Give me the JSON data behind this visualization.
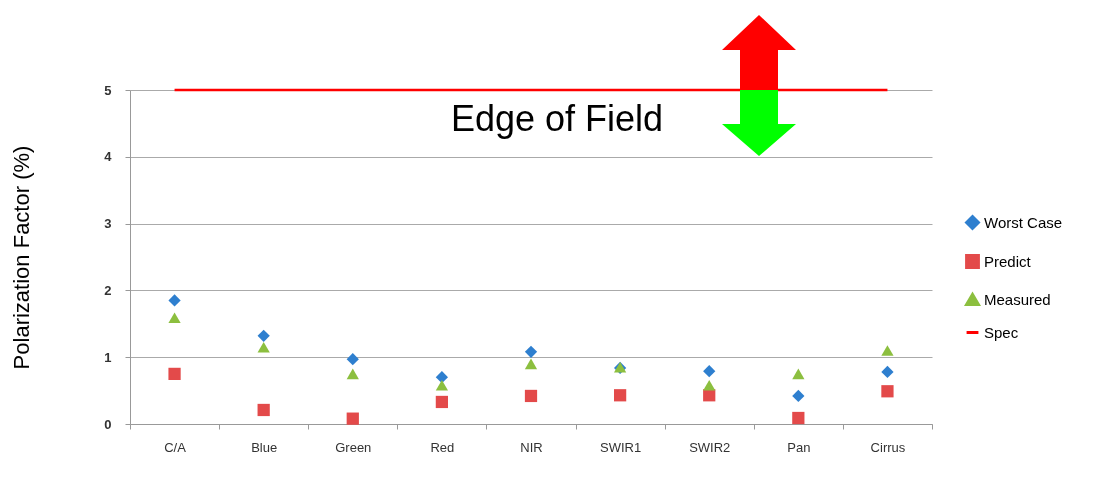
{
  "chart_data": {
    "type": "scatter",
    "ylabel": "Polarization Factor (%)",
    "categories": [
      "C/A",
      "Blue",
      "Green",
      "Red",
      "NIR",
      "SWIR1",
      "SWIR2",
      "Pan",
      "Cirrus"
    ],
    "series": [
      {
        "name": "Worst Case",
        "marker": "diamond",
        "color": "#2e7fcf",
        "values": [
          1.85,
          1.32,
          0.97,
          0.7,
          1.08,
          0.84,
          0.79,
          0.42,
          0.78
        ]
      },
      {
        "name": "Predict",
        "marker": "square",
        "color": "#e34a4a",
        "values": [
          0.75,
          0.21,
          0.08,
          0.33,
          0.42,
          0.43,
          0.43,
          0.09,
          0.49
        ]
      },
      {
        "name": "Measured",
        "marker": "triangle",
        "color": "#8cbf3f",
        "values": [
          1.59,
          1.15,
          0.75,
          0.58,
          0.9,
          0.85,
          0.58,
          0.75,
          1.1
        ]
      },
      {
        "name": "Spec",
        "type": "line",
        "line_style": "solid",
        "color": "#ff0000",
        "values": [
          5,
          5,
          5,
          5,
          5,
          5,
          5,
          5,
          5
        ]
      }
    ],
    "ylim": [
      0,
      5
    ],
    "yticks": [
      0,
      1,
      2,
      3,
      4,
      5
    ],
    "grid": "y",
    "legend": "right",
    "annotations": [
      "Edge of Field"
    ]
  }
}
